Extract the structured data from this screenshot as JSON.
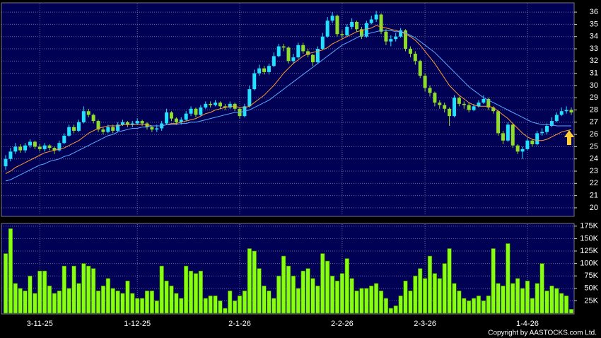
{
  "chart_data": [
    {
      "type": "candlestick",
      "categories": [
        null,
        null,
        null,
        null,
        null,
        null,
        null,
        "3-11-25",
        null,
        null,
        null,
        null,
        null,
        null,
        null,
        null,
        null,
        null,
        null,
        null,
        null,
        null,
        null,
        null,
        null,
        null,
        null,
        "1-12-25",
        null,
        null,
        null,
        null,
        null,
        null,
        null,
        null,
        null,
        null,
        null,
        null,
        null,
        null,
        null,
        null,
        null,
        null,
        null,
        null,
        "2-1-26",
        null,
        null,
        null,
        null,
        null,
        null,
        null,
        null,
        null,
        null,
        null,
        null,
        null,
        null,
        null,
        null,
        null,
        null,
        null,
        null,
        "2-2-26",
        null,
        null,
        null,
        null,
        null,
        null,
        null,
        null,
        null,
        null,
        null,
        null,
        null,
        null,
        null,
        null,
        "2-3-26",
        null,
        null,
        null,
        null,
        null,
        null,
        null,
        null,
        null,
        null,
        null,
        null,
        null,
        null,
        null,
        null,
        null,
        null,
        null,
        null,
        "1-4-26",
        null,
        null,
        null,
        null,
        null,
        null,
        null,
        null,
        null
      ],
      "open": [
        23.4,
        24.0,
        24.6,
        25.0,
        24.7,
        25.1,
        25.4,
        25.0,
        24.8,
        25.1,
        24.9,
        24.7,
        25.3,
        25.9,
        26.6,
        26.3,
        27.0,
        27.9,
        27.6,
        27.1,
        26.4,
        26.2,
        26.6,
        26.3,
        26.8,
        27.0,
        26.8,
        26.9,
        27.1,
        26.9,
        26.6,
        26.4,
        26.5,
        26.9,
        27.8,
        27.3,
        27.0,
        27.2,
        27.7,
        28.1,
        27.6,
        28.2,
        28.5,
        28.4,
        28.6,
        28.3,
        28.2,
        28.5,
        28.1,
        27.5,
        28.3,
        29.7,
        31.0,
        31.4,
        31.1,
        31.6,
        32.4,
        33.2,
        33.1,
        32.0,
        32.3,
        33.3,
        32.8,
        32.5,
        31.9,
        33.0,
        34.0,
        35.3,
        35.7,
        34.2,
        34.1,
        34.8,
        35.2,
        34.6,
        34.0,
        35.1,
        35.4,
        35.8,
        34.4,
        33.6,
        33.8,
        34.0,
        34.5,
        33.0,
        32.6,
        32.0,
        30.8,
        29.8,
        29.4,
        28.6,
        28.4,
        28.1,
        27.5,
        29.0,
        28.5,
        28.4,
        28.0,
        28.3,
        28.6,
        28.9,
        28.2,
        27.9,
        26.1,
        25.5,
        26.8,
        25.1,
        24.6,
        24.8,
        25.5,
        25.2,
        26.1,
        26.2,
        26.7,
        27.1,
        27.6,
        27.9,
        28.0
      ],
      "high": [
        24.3,
        24.9,
        25.3,
        25.2,
        25.3,
        25.6,
        25.5,
        25.2,
        25.3,
        25.2,
        25.0,
        25.5,
        26.1,
        26.8,
        26.8,
        27.2,
        28.3,
        28.1,
        27.7,
        27.2,
        26.6,
        26.8,
        26.8,
        27.0,
        27.2,
        27.1,
        27.1,
        27.3,
        27.2,
        27.0,
        26.7,
        26.8,
        27.1,
        28.1,
        27.9,
        27.4,
        27.4,
        27.9,
        28.3,
        28.2,
        28.4,
        28.7,
        28.7,
        28.8,
        28.7,
        28.5,
        28.7,
        28.6,
        28.2,
        28.5,
        30.0,
        31.3,
        31.7,
        31.6,
        31.8,
        32.7,
        33.4,
        33.4,
        33.2,
        32.6,
        33.5,
        33.5,
        33.0,
        32.6,
        33.2,
        34.3,
        35.6,
        36.0,
        35.8,
        34.5,
        35.0,
        35.5,
        35.3,
        34.8,
        35.3,
        35.7,
        36.1,
        35.9,
        34.6,
        34.1,
        34.3,
        34.7,
        34.6,
        33.2,
        32.8,
        32.1,
        31.0,
        30.0,
        29.5,
        28.8,
        28.6,
        28.2,
        29.2,
        29.1,
        28.7,
        28.6,
        28.5,
        28.8,
        29.2,
        29.0,
        28.3,
        28.0,
        26.3,
        27.0,
        26.9,
        25.2,
        25.0,
        25.7,
        25.6,
        26.3,
        26.5,
        26.9,
        27.4,
        27.8,
        28.2,
        28.3,
        28.2
      ],
      "low": [
        23.1,
        23.8,
        24.4,
        24.5,
        24.5,
        24.9,
        24.8,
        24.6,
        24.6,
        24.7,
        24.4,
        24.6,
        25.2,
        25.8,
        26.1,
        26.2,
        26.9,
        27.4,
        26.9,
        26.2,
        26.0,
        26.1,
        26.1,
        26.2,
        26.7,
        26.6,
        26.6,
        26.8,
        26.7,
        26.4,
        26.2,
        26.2,
        26.3,
        26.8,
        27.1,
        26.8,
        26.8,
        27.1,
        27.5,
        27.4,
        27.5,
        28.1,
        28.2,
        28.3,
        28.1,
        28.0,
        28.1,
        27.9,
        27.3,
        27.4,
        28.2,
        29.6,
        30.8,
        30.9,
        30.9,
        31.5,
        32.3,
        32.8,
        31.8,
        31.8,
        32.2,
        32.6,
        32.3,
        31.6,
        31.8,
        32.9,
        33.9,
        35.1,
        34.0,
        33.8,
        34.0,
        34.6,
        34.4,
        33.8,
        33.9,
        35.0,
        35.2,
        34.2,
        33.3,
        33.2,
        33.6,
        33.9,
        32.8,
        32.3,
        31.7,
        30.6,
        29.5,
        29.1,
        28.3,
        28.1,
        27.8,
        26.7,
        27.4,
        28.3,
        28.1,
        27.8,
        27.9,
        28.2,
        28.5,
        28.0,
        27.7,
        25.9,
        25.2,
        25.4,
        24.9,
        24.4,
        24.0,
        24.7,
        25.0,
        25.1,
        25.9,
        26.0,
        26.6,
        27.0,
        27.5,
        27.7,
        27.6
      ],
      "close": [
        24.0,
        24.6,
        25.0,
        24.7,
        25.1,
        25.4,
        25.0,
        24.8,
        25.1,
        24.9,
        24.7,
        25.3,
        25.9,
        26.6,
        26.3,
        27.0,
        27.9,
        27.6,
        27.1,
        26.4,
        26.2,
        26.6,
        26.3,
        26.8,
        27.0,
        26.8,
        26.9,
        27.1,
        26.9,
        26.6,
        26.4,
        26.5,
        26.9,
        27.8,
        27.3,
        27.0,
        27.2,
        27.7,
        28.1,
        27.6,
        28.2,
        28.5,
        28.4,
        28.6,
        28.3,
        28.2,
        28.5,
        28.1,
        27.5,
        28.3,
        29.7,
        31.0,
        31.4,
        31.1,
        31.6,
        32.4,
        33.2,
        33.1,
        32.0,
        32.3,
        33.3,
        32.8,
        32.5,
        31.9,
        33.0,
        34.0,
        35.3,
        35.7,
        34.2,
        34.1,
        34.8,
        35.2,
        34.6,
        34.0,
        35.1,
        35.4,
        35.8,
        34.4,
        33.6,
        33.8,
        34.0,
        34.5,
        33.0,
        32.6,
        32.0,
        30.8,
        29.8,
        29.4,
        28.6,
        28.4,
        28.1,
        27.5,
        29.0,
        28.5,
        28.4,
        28.0,
        28.3,
        28.6,
        28.9,
        28.2,
        27.9,
        26.1,
        25.5,
        26.8,
        25.1,
        24.6,
        24.8,
        25.5,
        25.2,
        26.1,
        26.2,
        26.7,
        27.1,
        27.6,
        27.9,
        28.0,
        27.8
      ],
      "up_color": "#22e0ff",
      "down_color": "#8fdc2a",
      "lines": [
        {
          "color": "#ff9933",
          "values": [
            22.8,
            23.0,
            23.3,
            23.5,
            23.7,
            23.9,
            24.1,
            24.3,
            24.5,
            24.6,
            24.7,
            24.8,
            24.9,
            25.1,
            25.3,
            25.5,
            25.8,
            26.1,
            26.3,
            26.5,
            26.6,
            26.7,
            26.7,
            26.7,
            26.8,
            26.8,
            26.8,
            26.8,
            26.8,
            26.8,
            26.7,
            26.7,
            26.7,
            26.8,
            26.9,
            26.9,
            27.0,
            27.1,
            27.2,
            27.3,
            27.5,
            27.7,
            27.8,
            28.0,
            28.1,
            28.2,
            28.3,
            28.3,
            28.2,
            28.2,
            28.3,
            28.6,
            28.9,
            29.2,
            29.6,
            30.0,
            30.5,
            31.0,
            31.4,
            31.8,
            32.1,
            32.4,
            32.6,
            32.7,
            32.8,
            32.9,
            33.1,
            33.4,
            33.6,
            33.8,
            34.0,
            34.2,
            34.4,
            34.5,
            34.6,
            34.7,
            34.9,
            34.8,
            34.7,
            34.6,
            34.5,
            34.4,
            34.2,
            34.0,
            33.7,
            33.3,
            32.8,
            32.3,
            31.8,
            31.2,
            30.6,
            30.0,
            29.6,
            29.2,
            28.9,
            28.6,
            28.4,
            28.3,
            28.3,
            28.3,
            28.2,
            27.9,
            27.6,
            27.3,
            26.9,
            26.5,
            26.1,
            25.8,
            25.6,
            25.5,
            25.5,
            25.6,
            25.8,
            26.0,
            26.2,
            26.3,
            26.4
          ]
        },
        {
          "color": "#5aaaff",
          "values": [
            22.2,
            22.3,
            22.5,
            22.7,
            22.9,
            23.1,
            23.3,
            23.5,
            23.6,
            23.8,
            23.9,
            24.0,
            24.2,
            24.3,
            24.5,
            24.7,
            24.9,
            25.1,
            25.3,
            25.5,
            25.7,
            25.9,
            26.0,
            26.2,
            26.3,
            26.4,
            26.5,
            26.5,
            26.6,
            26.6,
            26.7,
            26.7,
            26.7,
            26.8,
            26.8,
            26.8,
            26.9,
            26.9,
            27.0,
            27.0,
            27.1,
            27.2,
            27.3,
            27.4,
            27.5,
            27.6,
            27.7,
            27.8,
            27.8,
            27.9,
            28.0,
            28.2,
            28.4,
            28.6,
            28.8,
            29.1,
            29.4,
            29.7,
            30.0,
            30.3,
            30.6,
            30.9,
            31.2,
            31.5,
            31.8,
            32.1,
            32.4,
            32.7,
            33.0,
            33.3,
            33.5,
            33.7,
            33.9,
            34.1,
            34.2,
            34.3,
            34.4,
            34.5,
            34.5,
            34.5,
            34.4,
            34.4,
            34.3,
            34.1,
            33.9,
            33.6,
            33.3,
            33.0,
            32.7,
            32.3,
            31.9,
            31.5,
            31.1,
            30.7,
            30.3,
            29.9,
            29.6,
            29.3,
            29.0,
            28.8,
            28.6,
            28.4,
            28.2,
            28.0,
            27.8,
            27.6,
            27.4,
            27.2,
            27.0,
            26.9,
            26.8,
            26.8,
            26.8,
            26.7,
            26.7,
            26.7,
            26.7
          ]
        }
      ],
      "ylim": [
        19.36,
        36.7
      ],
      "yticks": [
        20,
        21,
        22,
        23,
        24,
        25,
        26,
        27,
        28,
        29,
        30,
        31,
        32,
        33,
        34,
        35,
        36
      ],
      "grid": true
    },
    {
      "type": "bar",
      "values": [
        120000,
        170000,
        60000,
        50000,
        45000,
        75000,
        40000,
        85000,
        85000,
        55000,
        40000,
        45000,
        95000,
        50000,
        95000,
        60000,
        100000,
        95000,
        90000,
        45000,
        55000,
        70000,
        50000,
        45000,
        40000,
        65000,
        40000,
        30000,
        30000,
        45000,
        45000,
        25000,
        95000,
        65000,
        55000,
        40000,
        30000,
        95000,
        85000,
        80000,
        85000,
        30000,
        35000,
        35000,
        25000,
        10000,
        45000,
        25000,
        35000,
        45000,
        130000,
        125000,
        90000,
        55000,
        45000,
        30000,
        75000,
        115000,
        95000,
        75000,
        50000,
        85000,
        90000,
        70000,
        55000,
        120000,
        105000,
        75000,
        65000,
        80000,
        110000,
        70000,
        45000,
        50000,
        50000,
        55000,
        60000,
        45000,
        30000,
        10000,
        15000,
        35000,
        65000,
        45000,
        75000,
        90000,
        70000,
        115000,
        80000,
        70000,
        100000,
        130000,
        60000,
        45000,
        30000,
        25000,
        30000,
        35000,
        25000,
        35000,
        130000,
        60000,
        55000,
        140000,
        60000,
        70000,
        50000,
        65000,
        30000,
        60000,
        100000,
        45000,
        55000,
        50000,
        40000,
        35000,
        8000
      ],
      "color": "#88ff11",
      "ylim": [
        0,
        179000
      ],
      "yticks": [
        {
          "value": 25000,
          "label": "25K"
        },
        {
          "value": 50000,
          "label": "50K"
        },
        {
          "value": 75000,
          "label": "75K"
        },
        {
          "value": 100000,
          "label": "100K"
        },
        {
          "value": 125000,
          "label": "125K"
        },
        {
          "value": 150000,
          "label": "150K"
        },
        {
          "value": 175000,
          "label": "175K"
        }
      ],
      "grid": true
    }
  ],
  "footer": "Copyright by AASTOCKS.com Ltd."
}
